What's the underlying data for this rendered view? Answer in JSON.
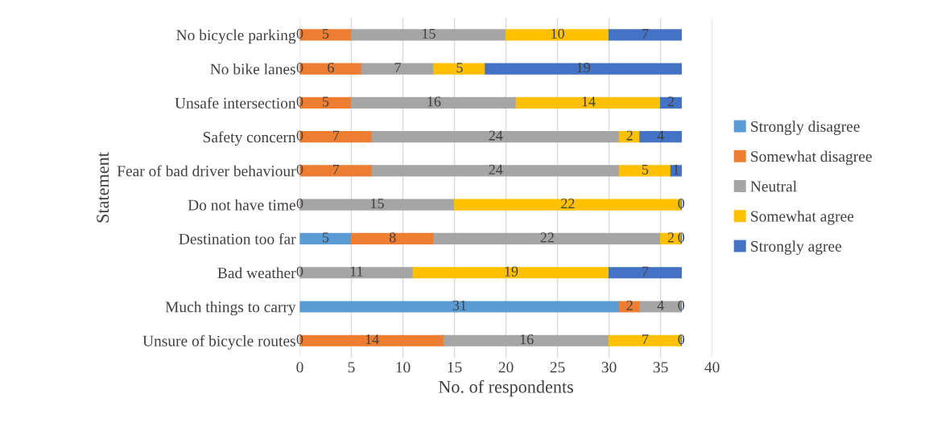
{
  "chart_data": {
    "type": "bar",
    "orientation": "horizontal",
    "stacked": true,
    "grid": "x",
    "legend": "right",
    "xlabel": "No. of respondents",
    "ylabel": "Statement",
    "categories": [
      "No bicycle parking",
      "No bike lanes",
      "Unsafe intersection",
      "Safety concern",
      "Fear of bad driver behaviour",
      "Do not have time",
      "Destination too far",
      "Bad weather",
      "Much things to carry",
      "Unsure of bicycle routes"
    ],
    "series": [
      {
        "name": "Strongly disagree",
        "color": "#5b9bd5",
        "values": [
          0,
          0,
          0,
          0,
          0,
          0,
          5,
          0,
          31,
          0
        ],
        "value_labels": [
          "0",
          "0",
          "0",
          "0",
          "0",
          "0",
          "5",
          "0",
          "31",
          "0"
        ]
      },
      {
        "name": "Somewhat disagree",
        "color": "#ed7d31",
        "values": [
          5,
          6,
          5,
          7,
          7,
          0,
          8,
          0,
          2,
          14
        ],
        "value_labels": [
          "5",
          "6",
          "5",
          "7",
          "7",
          null,
          "8",
          null,
          "2",
          "14"
        ]
      },
      {
        "name": "Neutral",
        "color": "#a5a5a5",
        "values": [
          15,
          7,
          16,
          24,
          24,
          15,
          22,
          11,
          4,
          16
        ],
        "value_labels": [
          "15",
          "7",
          "16",
          "24",
          "24",
          "15",
          "22",
          "11",
          "4",
          "16"
        ]
      },
      {
        "name": "Somewhat agree",
        "color": "#ffc000",
        "values": [
          10,
          5,
          14,
          2,
          5,
          22,
          2,
          19,
          0,
          7
        ],
        "value_labels": [
          "10",
          "5",
          "14",
          "2",
          "5",
          "22",
          "2",
          "19",
          null,
          "7"
        ]
      },
      {
        "name": "Strongly agree",
        "color": "#4472c4",
        "values": [
          7,
          19,
          2,
          4,
          1,
          0,
          0,
          7,
          0,
          0
        ],
        "value_labels": [
          "7",
          "19",
          "2",
          "4",
          "1",
          "0",
          "0",
          "7",
          "0",
          "0"
        ]
      }
    ],
    "xlim": [
      0,
      40
    ],
    "xticks": [
      0,
      5,
      10,
      15,
      20,
      25,
      30,
      35,
      40
    ]
  }
}
